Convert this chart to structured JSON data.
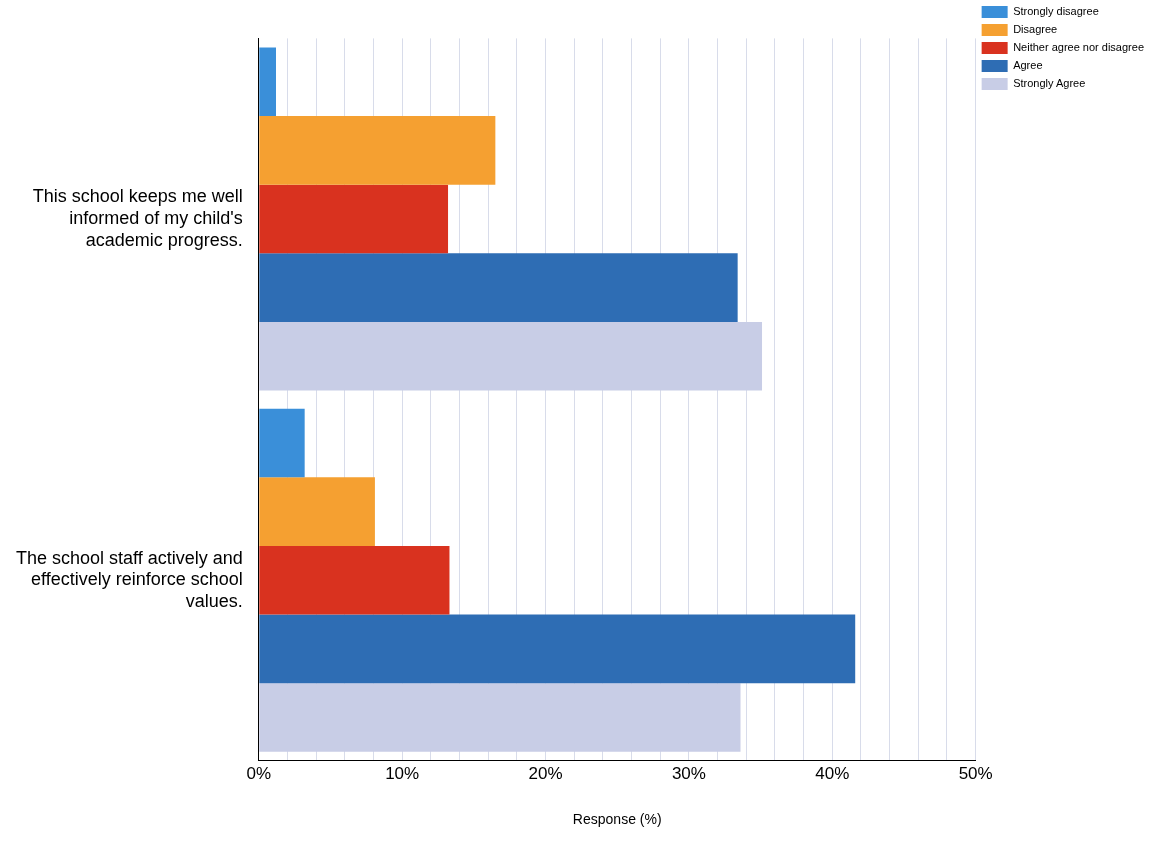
{
  "chart_data": {
    "type": "bar",
    "orientation": "horizontal",
    "xlabel": "Response (%)",
    "categories": [
      "This school keeps me well informed of my child's academic progress.",
      "The school staff actively and effectively reinforce school values."
    ],
    "series": [
      {
        "name": "Strongly disagree",
        "color": "#3a8fd9",
        "values": [
          1.2,
          3.2
        ]
      },
      {
        "name": "Disagree",
        "color": "#f5a031",
        "values": [
          16.5,
          8.1
        ]
      },
      {
        "name": "Neither agree nor disagree",
        "color": "#d9321f",
        "values": [
          13.2,
          13.3
        ]
      },
      {
        "name": "Agree",
        "color": "#2e6db4",
        "values": [
          33.4,
          41.6
        ]
      },
      {
        "name": "Strongly Agree",
        "color": "#c8cde6",
        "values": [
          35.1,
          33.6
        ]
      }
    ],
    "xlim": [
      0,
      50
    ],
    "xticks": [
      {
        "value": 0,
        "label": "0%"
      },
      {
        "value": 2,
        "label": null
      },
      {
        "value": 4,
        "label": null
      },
      {
        "value": 6,
        "label": null
      },
      {
        "value": 8,
        "label": null
      },
      {
        "value": 10,
        "label": "10%"
      },
      {
        "value": 12,
        "label": null
      },
      {
        "value": 14,
        "label": null
      },
      {
        "value": 16,
        "label": null
      },
      {
        "value": 18,
        "label": null
      },
      {
        "value": 20,
        "label": "20%"
      },
      {
        "value": 22,
        "label": null
      },
      {
        "value": 24,
        "label": null
      },
      {
        "value": 26,
        "label": null
      },
      {
        "value": 28,
        "label": null
      },
      {
        "value": 30,
        "label": "30%"
      },
      {
        "value": 32,
        "label": null
      },
      {
        "value": 34,
        "label": null
      },
      {
        "value": 36,
        "label": null
      },
      {
        "value": 38,
        "label": null
      },
      {
        "value": 40,
        "label": "40%"
      },
      {
        "value": 42,
        "label": null
      },
      {
        "value": 44,
        "label": null
      },
      {
        "value": 46,
        "label": null
      },
      {
        "value": 48,
        "label": null
      },
      {
        "value": 50,
        "label": "50%"
      }
    ],
    "grid": "x",
    "legend": "top right"
  }
}
